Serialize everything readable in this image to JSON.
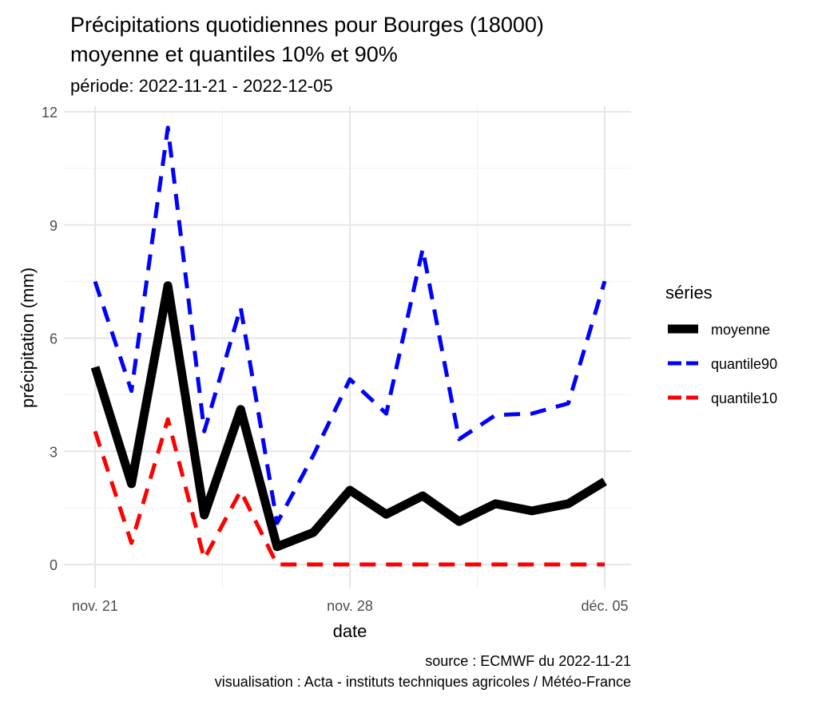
{
  "chart_data": {
    "type": "line",
    "title": "Précipitations quotidiennes pour Bourges (18000)",
    "title_line2": "moyenne et quantiles 10% et 90%",
    "subtitle": "période: 2022-11-21 - 2022-12-05",
    "xlabel": "date",
    "ylabel": "précipitation (mm)",
    "caption_line1": "source : ECMWF du 2022-11-21",
    "caption_line2": "visualisation : Acta - instituts techniques agricoles / Météo-France",
    "legend_title": "séries",
    "legend_position": "right",
    "ylim": [
      -0.6,
      12
    ],
    "yticks": [
      0,
      3,
      6,
      9,
      12
    ],
    "ytick_labels": [
      "0",
      "3",
      "6",
      "9",
      "12"
    ],
    "xticks": [
      0,
      7,
      14
    ],
    "xtick_labels": [
      "nov. 21",
      "nov. 28",
      "déc. 05"
    ],
    "x": [
      "2022-11-21",
      "2022-11-22",
      "2022-11-23",
      "2022-11-24",
      "2022-11-25",
      "2022-11-26",
      "2022-11-27",
      "2022-11-28",
      "2022-11-29",
      "2022-11-30",
      "2022-12-01",
      "2022-12-02",
      "2022-12-03",
      "2022-12-04",
      "2022-12-05"
    ],
    "series": [
      {
        "name": "moyenne",
        "color": "#000000",
        "dash": "solid",
        "values": [
          5.23,
          2.14,
          7.39,
          1.31,
          4.11,
          0.47,
          0.85,
          1.97,
          1.33,
          1.82,
          1.14,
          1.61,
          1.42,
          1.61,
          2.2
        ]
      },
      {
        "name": "quantile90",
        "color": "#0000ff",
        "dash": "dashed",
        "values": [
          7.5,
          4.6,
          11.58,
          3.53,
          6.81,
          1.1,
          2.9,
          4.91,
          4.0,
          8.36,
          3.32,
          3.96,
          4.0,
          4.27,
          7.51
        ]
      },
      {
        "name": "quantile10",
        "color": "#ff0000",
        "dash": "dashed",
        "values": [
          3.53,
          0.57,
          3.85,
          0.15,
          1.95,
          0,
          0,
          0,
          0,
          0,
          0,
          0,
          0,
          0,
          0
        ]
      }
    ]
  }
}
